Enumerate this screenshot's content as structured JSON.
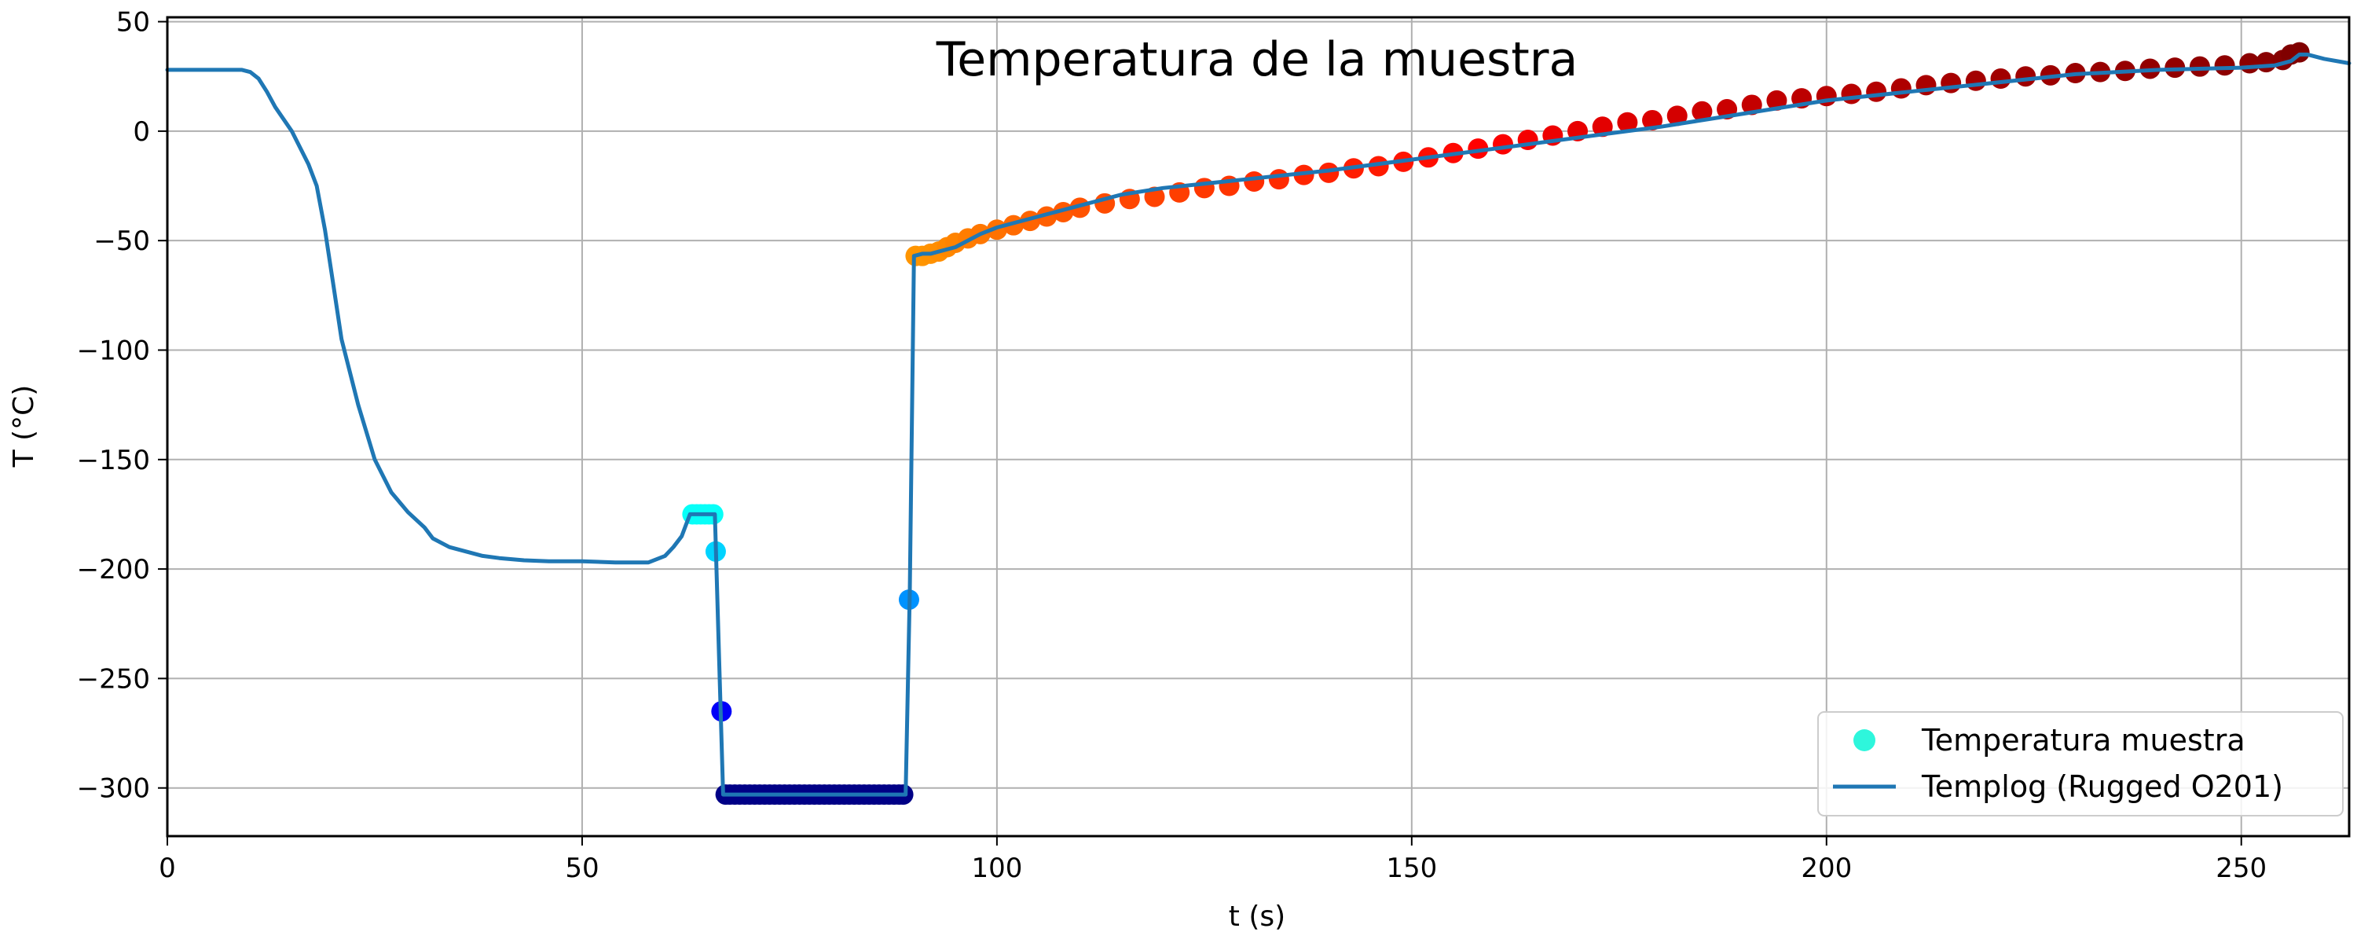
{
  "chart_data": {
    "type": "line+scatter",
    "title": "Temperatura de la muestra",
    "xlabel": "t (s)",
    "ylabel": "T (°C)",
    "xlim": [
      0,
      263
    ],
    "ylim": [
      -322,
      52
    ],
    "xticks": [
      0,
      50,
      100,
      150,
      200,
      250
    ],
    "yticks": [
      50,
      0,
      -50,
      -100,
      -150,
      -200,
      -250,
      -300
    ],
    "xtick_labels": [
      "0",
      "50",
      "100",
      "150",
      "200",
      "250"
    ],
    "ytick_labels": [
      "50",
      "0",
      "−50",
      "−100",
      "−150",
      "−200",
      "−250",
      "−300"
    ],
    "grid": true,
    "legend_position": "lower-right",
    "colormap": "jet",
    "scatter_color_range": [
      -305,
      35
    ],
    "series": [
      {
        "name": "Templog (Rugged O201)",
        "kind": "line",
        "color": "#1f77b4",
        "x": [
          0,
          9,
          10,
          11,
          12,
          13,
          15,
          17,
          18,
          19,
          20,
          21,
          23,
          25,
          27,
          29,
          31,
          32,
          34,
          36,
          38,
          40,
          43,
          46,
          50,
          54,
          57,
          58,
          60,
          61,
          62,
          63,
          64,
          65,
          66,
          66.5,
          67,
          68,
          70,
          75,
          80,
          85,
          88,
          89,
          89.5,
          90,
          91,
          92,
          93,
          95,
          98,
          100,
          105,
          110,
          115,
          120,
          130,
          140,
          150,
          160,
          170,
          180,
          190,
          200,
          210,
          220,
          230,
          240,
          250,
          254,
          256,
          257,
          258,
          260,
          263
        ],
        "y": [
          28,
          28,
          27,
          24,
          18,
          11,
          0,
          -15,
          -25,
          -45,
          -70,
          -95,
          -125,
          -150,
          -165,
          -174,
          -181,
          -186,
          -190,
          -192,
          -194,
          -195,
          -196,
          -196.5,
          -196.5,
          -197,
          -197,
          -197,
          -194,
          -190,
          -185,
          -175,
          -175,
          -175,
          -175,
          -240,
          -303,
          -303,
          -303,
          -303,
          -303,
          -303,
          -303,
          -303,
          -210,
          -57,
          -56,
          -56,
          -55,
          -53,
          -47,
          -44,
          -39,
          -34,
          -29,
          -26,
          -22,
          -18,
          -13,
          -8,
          -3,
          2,
          8,
          14,
          18,
          22,
          26,
          28,
          29,
          30,
          32,
          35,
          35,
          33,
          31
        ]
      },
      {
        "name": "Temperatura muestra",
        "kind": "scatter",
        "legend_color": "#2ef6dc",
        "x": [
          63.3,
          63.8,
          64.3,
          64.8,
          65.3,
          65.8,
          66.1,
          66.8,
          67.3,
          67.8,
          68.4,
          69,
          69.6,
          70.2,
          70.8,
          71.4,
          72,
          72.6,
          73.2,
          73.8,
          74.4,
          75,
          75.6,
          76.2,
          76.8,
          77.4,
          78,
          78.6,
          79.2,
          79.8,
          80.4,
          81,
          81.6,
          82.2,
          82.8,
          83.4,
          84,
          84.6,
          85.2,
          85.8,
          86.4,
          87,
          87.6,
          88.2,
          88.7,
          89.4,
          90.2,
          91,
          92,
          93,
          94,
          95,
          96.5,
          98,
          100,
          102,
          104,
          106,
          108,
          110,
          113,
          116,
          119,
          122,
          125,
          128,
          131,
          134,
          137,
          140,
          143,
          146,
          149,
          152,
          155,
          158,
          161,
          164,
          167,
          170,
          173,
          176,
          179,
          182,
          185,
          188,
          191,
          194,
          197,
          200,
          203,
          206,
          209,
          212,
          215,
          218,
          221,
          224,
          227,
          230,
          233,
          236,
          239,
          242,
          245,
          248,
          251,
          253,
          255,
          256,
          257
        ],
        "y": [
          -175,
          -175,
          -175,
          -175,
          -175,
          -175,
          -192,
          -265,
          -303,
          -303,
          -303,
          -303,
          -303,
          -303,
          -303,
          -303,
          -303,
          -303,
          -303,
          -303,
          -303,
          -303,
          -303,
          -303,
          -303,
          -303,
          -303,
          -303,
          -303,
          -303,
          -303,
          -303,
          -303,
          -303,
          -303,
          -303,
          -303,
          -303,
          -303,
          -303,
          -303,
          -303,
          -303,
          -303,
          -303,
          -214,
          -57,
          -57,
          -56,
          -55,
          -53,
          -51,
          -49,
          -47,
          -45,
          -43,
          -41,
          -39,
          -37,
          -35,
          -33,
          -31,
          -30,
          -28,
          -26,
          -25,
          -23,
          -22,
          -20,
          -19,
          -17,
          -16,
          -14,
          -12,
          -10,
          -8,
          -6,
          -4,
          -2,
          0,
          2,
          4,
          5,
          7,
          9,
          10,
          12,
          14,
          15,
          16,
          17,
          18,
          19.5,
          21,
          22,
          23,
          24,
          25,
          25.5,
          26.5,
          27,
          27.5,
          28.5,
          29,
          29.5,
          30,
          31,
          31.5,
          32.5,
          35,
          36
        ]
      }
    ]
  }
}
